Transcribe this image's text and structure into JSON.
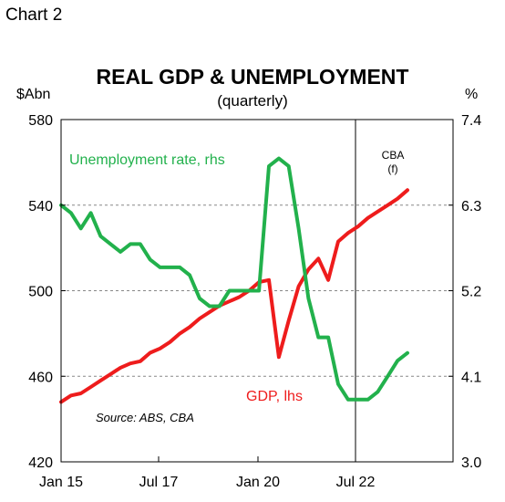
{
  "header": {
    "chart_label": "Chart 2"
  },
  "chart_data": {
    "type": "line",
    "title": "REAL GDP & UNEMPLOYMENT",
    "subtitle": "(quarterly)",
    "y_left_unit": "$Abn",
    "y_right_unit": "%",
    "x_ticks": [
      "Jan 15",
      "Jul 17",
      "Jan 20",
      "Jul 22"
    ],
    "y_left_ticks": [
      "580",
      "540",
      "500",
      "460",
      "420"
    ],
    "y_right_ticks": [
      "7.4",
      "6.3",
      "5.2",
      "4.1",
      "3.0"
    ],
    "ylim_left": [
      420,
      580
    ],
    "ylim_right": [
      3.0,
      7.4
    ],
    "grid": "horizontal dashed",
    "forecast_marker": {
      "at": "Jul 22",
      "label_line1": "CBA",
      "label_line2": "(f)"
    },
    "source": "Source: ABS, CBA",
    "colors": {
      "gdp": "#ee1c1c",
      "unemployment": "#22b14c",
      "grid": "#888888"
    },
    "series": [
      {
        "name": "GDP, lhs",
        "axis": "left",
        "color": "#ee1c1c",
        "points": [
          [
            "2015-01",
            448
          ],
          [
            "2015-04",
            451
          ],
          [
            "2015-07",
            452
          ],
          [
            "2015-10",
            455
          ],
          [
            "2016-01",
            458
          ],
          [
            "2016-04",
            461
          ],
          [
            "2016-07",
            464
          ],
          [
            "2016-10",
            466
          ],
          [
            "2017-01",
            467
          ],
          [
            "2017-04",
            471
          ],
          [
            "2017-07",
            473
          ],
          [
            "2017-10",
            476
          ],
          [
            "2018-01",
            480
          ],
          [
            "2018-04",
            483
          ],
          [
            "2018-07",
            487
          ],
          [
            "2018-10",
            490
          ],
          [
            "2019-01",
            493
          ],
          [
            "2019-04",
            495
          ],
          [
            "2019-07",
            497
          ],
          [
            "2019-10",
            500
          ],
          [
            "2020-01",
            504
          ],
          [
            "2020-04",
            505
          ],
          [
            "2020-07",
            469
          ],
          [
            "2020-10",
            486
          ],
          [
            "2021-01",
            502
          ],
          [
            "2021-04",
            510
          ],
          [
            "2021-07",
            515
          ],
          [
            "2021-10",
            505
          ],
          [
            "2022-01",
            523
          ],
          [
            "2022-04",
            527
          ],
          [
            "2022-07",
            530
          ],
          [
            "2022-10",
            534
          ],
          [
            "2023-01",
            537
          ],
          [
            "2023-04",
            540
          ],
          [
            "2023-07",
            543
          ],
          [
            "2023-10",
            547
          ]
        ]
      },
      {
        "name": "Unemployment rate, rhs",
        "axis": "right",
        "color": "#22b14c",
        "points": [
          [
            "2015-01",
            6.3
          ],
          [
            "2015-04",
            6.2
          ],
          [
            "2015-07",
            6.0
          ],
          [
            "2015-10",
            6.2
          ],
          [
            "2016-01",
            5.9
          ],
          [
            "2016-04",
            5.8
          ],
          [
            "2016-07",
            5.7
          ],
          [
            "2016-10",
            5.8
          ],
          [
            "2017-01",
            5.8
          ],
          [
            "2017-04",
            5.6
          ],
          [
            "2017-07",
            5.5
          ],
          [
            "2017-10",
            5.5
          ],
          [
            "2018-01",
            5.5
          ],
          [
            "2018-04",
            5.4
          ],
          [
            "2018-07",
            5.1
          ],
          [
            "2018-10",
            5.0
          ],
          [
            "2019-01",
            5.0
          ],
          [
            "2019-04",
            5.2
          ],
          [
            "2019-07",
            5.2
          ],
          [
            "2019-10",
            5.2
          ],
          [
            "2020-01",
            5.2
          ],
          [
            "2020-04",
            6.8
          ],
          [
            "2020-07",
            6.9
          ],
          [
            "2020-10",
            6.8
          ],
          [
            "2021-01",
            6.0
          ],
          [
            "2021-04",
            5.1
          ],
          [
            "2021-07",
            4.6
          ],
          [
            "2021-10",
            4.6
          ],
          [
            "2022-01",
            4.0
          ],
          [
            "2022-04",
            3.8
          ],
          [
            "2022-07",
            3.8
          ],
          [
            "2022-10",
            3.8
          ],
          [
            "2023-01",
            3.9
          ],
          [
            "2023-04",
            4.1
          ],
          [
            "2023-07",
            4.3
          ],
          [
            "2023-10",
            4.4
          ]
        ]
      }
    ],
    "annotations": [
      {
        "text": "Unemployment rate, rhs",
        "color": "#22b14c"
      },
      {
        "text": "GDP, lhs",
        "color": "#ee1c1c"
      }
    ]
  }
}
